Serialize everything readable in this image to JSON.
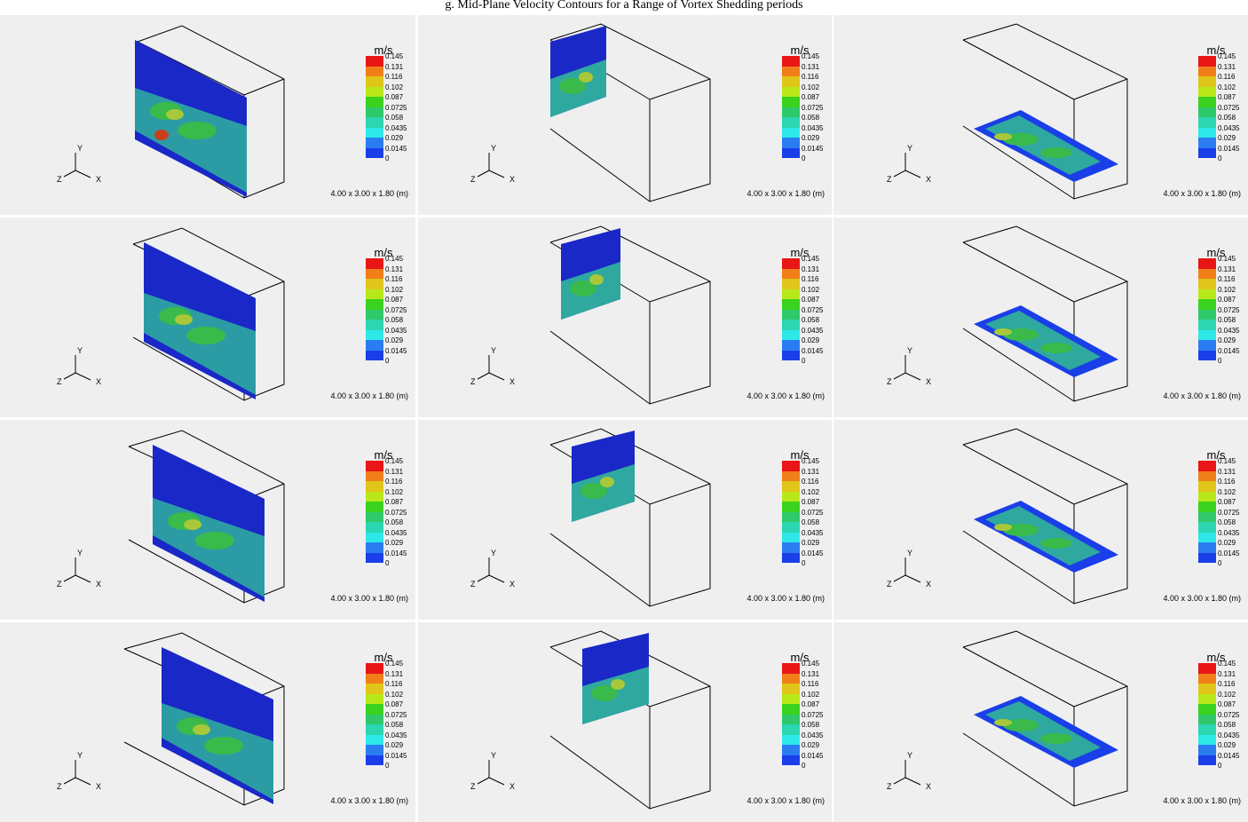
{
  "header": {
    "caption": "g. Mid-Plane Velocity Contours for a Range of Vortex Shedding periods"
  },
  "legend": {
    "unit": "m/s",
    "ticks": [
      "0.145",
      "0.131",
      "0.116",
      "0.102",
      "0.087",
      "0.0725",
      "0.058",
      "0.0435",
      "0.029",
      "0.0145",
      "0"
    ],
    "colors": [
      "#e81616",
      "#f07f1a",
      "#e0c61a",
      "#b8e81a",
      "#3ad21e",
      "#2fc86a",
      "#2cd6b0",
      "#2ee8e8",
      "#2a7cf0",
      "#1a3ee8"
    ]
  },
  "dimensions_label": "4.00 x 3.00 x 1.80 (m)",
  "axes": {
    "x": "X",
    "y": "Y",
    "z": "Z"
  },
  "panel_count": 12
}
